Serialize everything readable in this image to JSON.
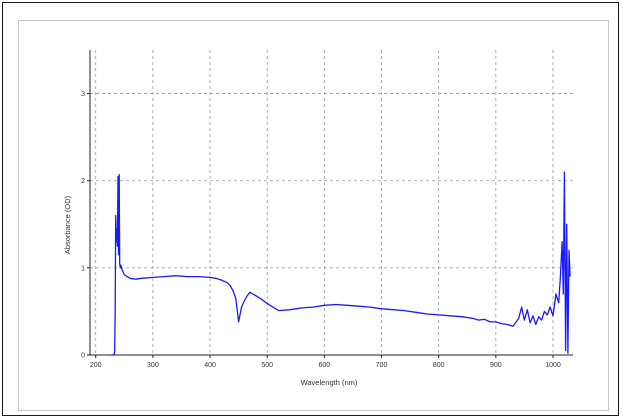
{
  "chart_data": {
    "type": "line",
    "title": "",
    "xlabel": "Wavelength (nm)",
    "ylabel": "Absorbance (OD)",
    "xlim": [
      190,
      1035
    ],
    "ylim": [
      0,
      3.5
    ],
    "x_ticks": [
      200,
      300,
      400,
      500,
      600,
      700,
      800,
      900,
      1000
    ],
    "x_tick_labels": [
      "200",
      "300",
      "400",
      "500",
      "600",
      "700",
      "800",
      "900",
      "1000"
    ],
    "y_ticks": [
      0,
      1,
      2,
      3
    ],
    "y_tick_labels": [
      "0",
      "1",
      "2",
      "3"
    ],
    "grid": true,
    "legend": "none",
    "series": [
      {
        "color": "#1a1aff",
        "x": [
          226,
          229,
          231,
          233,
          234,
          235,
          236,
          237,
          238,
          239,
          240,
          241,
          242,
          243,
          244,
          246,
          248,
          250,
          255,
          260,
          270,
          280,
          300,
          320,
          340,
          360,
          380,
          400,
          410,
          420,
          430,
          435,
          440,
          445,
          450,
          455,
          460,
          465,
          470,
          475,
          480,
          490,
          500,
          510,
          520,
          540,
          560,
          580,
          600,
          620,
          640,
          660,
          680,
          700,
          720,
          740,
          760,
          780,
          800,
          820,
          840,
          860,
          870,
          880,
          890,
          900,
          910,
          920,
          930,
          940,
          945,
          950,
          955,
          960,
          965,
          970,
          975,
          980,
          985,
          990,
          995,
          1000,
          1005,
          1010,
          1013,
          1016,
          1018,
          1020,
          1022,
          1024,
          1026,
          1028,
          1030
        ],
        "y": [
          0.0,
          0.0,
          0.0,
          0.02,
          0.5,
          1.6,
          1.3,
          1.45,
          1.25,
          2.05,
          1.15,
          2.07,
          1.05,
          1.0,
          1.03,
          0.98,
          0.95,
          0.92,
          0.9,
          0.88,
          0.87,
          0.88,
          0.89,
          0.9,
          0.91,
          0.9,
          0.9,
          0.89,
          0.88,
          0.86,
          0.83,
          0.8,
          0.74,
          0.65,
          0.38,
          0.55,
          0.62,
          0.68,
          0.72,
          0.7,
          0.68,
          0.64,
          0.59,
          0.55,
          0.51,
          0.52,
          0.54,
          0.55,
          0.57,
          0.58,
          0.57,
          0.56,
          0.55,
          0.53,
          0.52,
          0.51,
          0.49,
          0.47,
          0.46,
          0.45,
          0.44,
          0.42,
          0.4,
          0.41,
          0.38,
          0.38,
          0.36,
          0.35,
          0.33,
          0.42,
          0.55,
          0.4,
          0.52,
          0.37,
          0.45,
          0.35,
          0.44,
          0.4,
          0.5,
          0.46,
          0.55,
          0.45,
          0.7,
          0.6,
          0.9,
          1.3,
          0.7,
          2.1,
          0.05,
          1.5,
          0.02,
          1.2,
          0.9
        ]
      }
    ]
  }
}
